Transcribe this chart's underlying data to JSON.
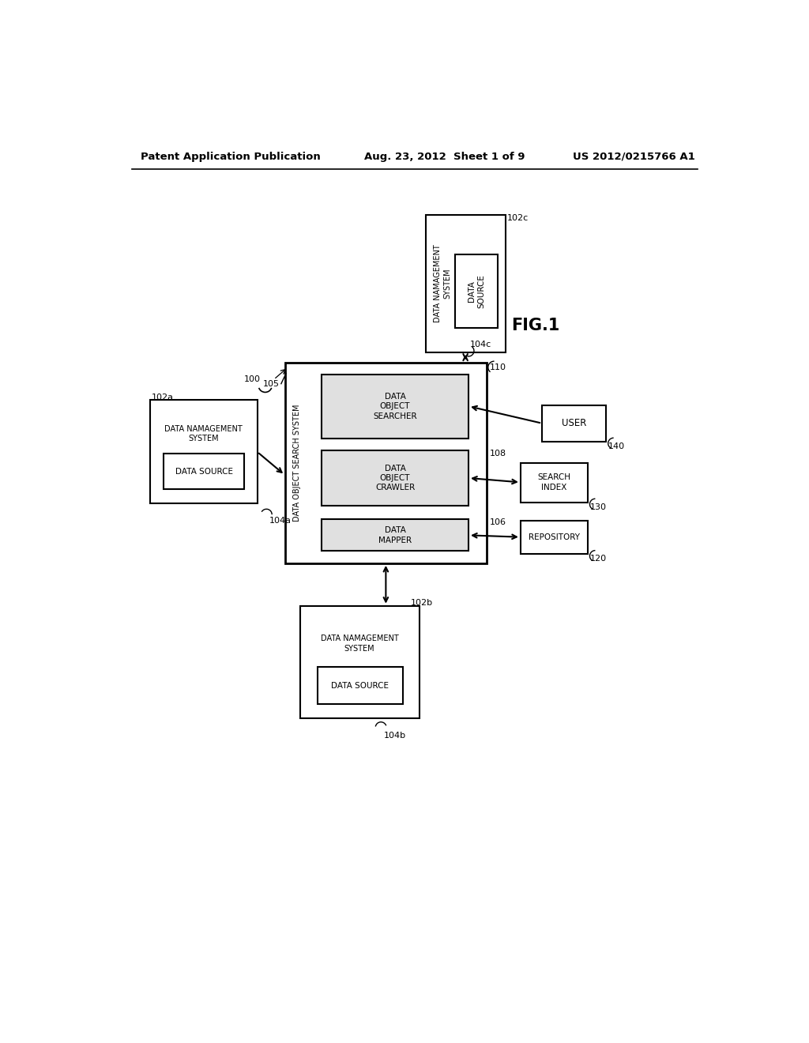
{
  "background_color": "#ffffff",
  "header_left": "Patent Application Publication",
  "header_mid": "Aug. 23, 2012  Sheet 1 of 9",
  "header_right": "US 2012/0215766 A1",
  "fig_label": "FIG.1",
  "label_100": "100",
  "label_102a": "102a",
  "label_102b": "102b",
  "label_102c": "102c",
  "label_104a": "104a",
  "label_104b": "104b",
  "label_104c": "104c",
  "label_105": "105",
  "label_106": "106",
  "label_108": "108",
  "label_110": "110",
  "label_120": "120",
  "label_130": "130",
  "label_140": "140"
}
